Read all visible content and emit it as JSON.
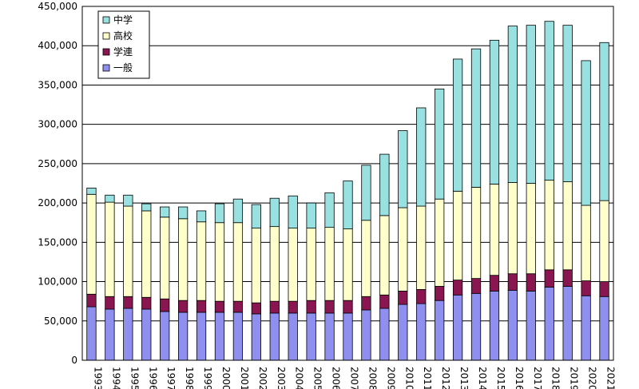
{
  "chart_data": {
    "type": "bar",
    "stacked": true,
    "title": "",
    "xlabel": "",
    "ylabel": "",
    "ylim": [
      0,
      450000
    ],
    "y_ticks": [
      0,
      50000,
      100000,
      150000,
      200000,
      250000,
      300000,
      350000,
      400000,
      450000
    ],
    "y_tick_labels": [
      "0",
      "50,000",
      "100,000",
      "150,000",
      "200,000",
      "250,000",
      "300,000",
      "350,000",
      "400,000",
      "450,000"
    ],
    "grid": true,
    "legend_position": "top-left",
    "categories": [
      "1993",
      "1994",
      "1995",
      "1996",
      "1997",
      "1998",
      "1999",
      "2000",
      "2001",
      "2002",
      "2003",
      "2004",
      "2005",
      "2006",
      "2007",
      "2008",
      "2009",
      "2010",
      "2011",
      "2012",
      "2013",
      "2014",
      "2015",
      "2016",
      "2017",
      "2018",
      "2019",
      "2020",
      "2021"
    ],
    "series": [
      {
        "name": "一般",
        "color": "#8f8fef",
        "values": [
          68000,
          65000,
          66000,
          65000,
          62000,
          61000,
          61000,
          61000,
          61000,
          59000,
          60000,
          60000,
          60000,
          60000,
          60000,
          64000,
          66000,
          71000,
          72000,
          76000,
          83000,
          85000,
          88000,
          89000,
          88000,
          93000,
          94000,
          82000,
          81000
        ]
      },
      {
        "name": "学連",
        "color": "#8a1651",
        "values": [
          16000,
          16000,
          15000,
          15000,
          16000,
          15000,
          15000,
          14000,
          14000,
          14000,
          15000,
          15000,
          16000,
          16000,
          16000,
          17000,
          17000,
          17000,
          18000,
          18000,
          19000,
          19000,
          20000,
          21000,
          22000,
          22000,
          21000,
          19000,
          19000
        ]
      },
      {
        "name": "高校",
        "color": "#ffffcc",
        "values": [
          127000,
          120000,
          115000,
          110000,
          104000,
          104000,
          100000,
          100000,
          100000,
          95000,
          95000,
          93000,
          92000,
          93000,
          91000,
          97000,
          101000,
          106000,
          106000,
          111000,
          113000,
          116000,
          116000,
          116000,
          115000,
          114000,
          112000,
          96000,
          103000
        ]
      },
      {
        "name": "中学",
        "color": "#99e0e0",
        "values": [
          8000,
          9000,
          14000,
          9000,
          13000,
          15000,
          14000,
          24000,
          30000,
          30000,
          36000,
          41000,
          32000,
          44000,
          61000,
          70000,
          78000,
          98000,
          125000,
          140000,
          168000,
          176000,
          183000,
          199000,
          201000,
          202000,
          199000,
          184000,
          201000
        ]
      }
    ],
    "legend_order": [
      "中学",
      "高校",
      "学連",
      "一般"
    ]
  }
}
